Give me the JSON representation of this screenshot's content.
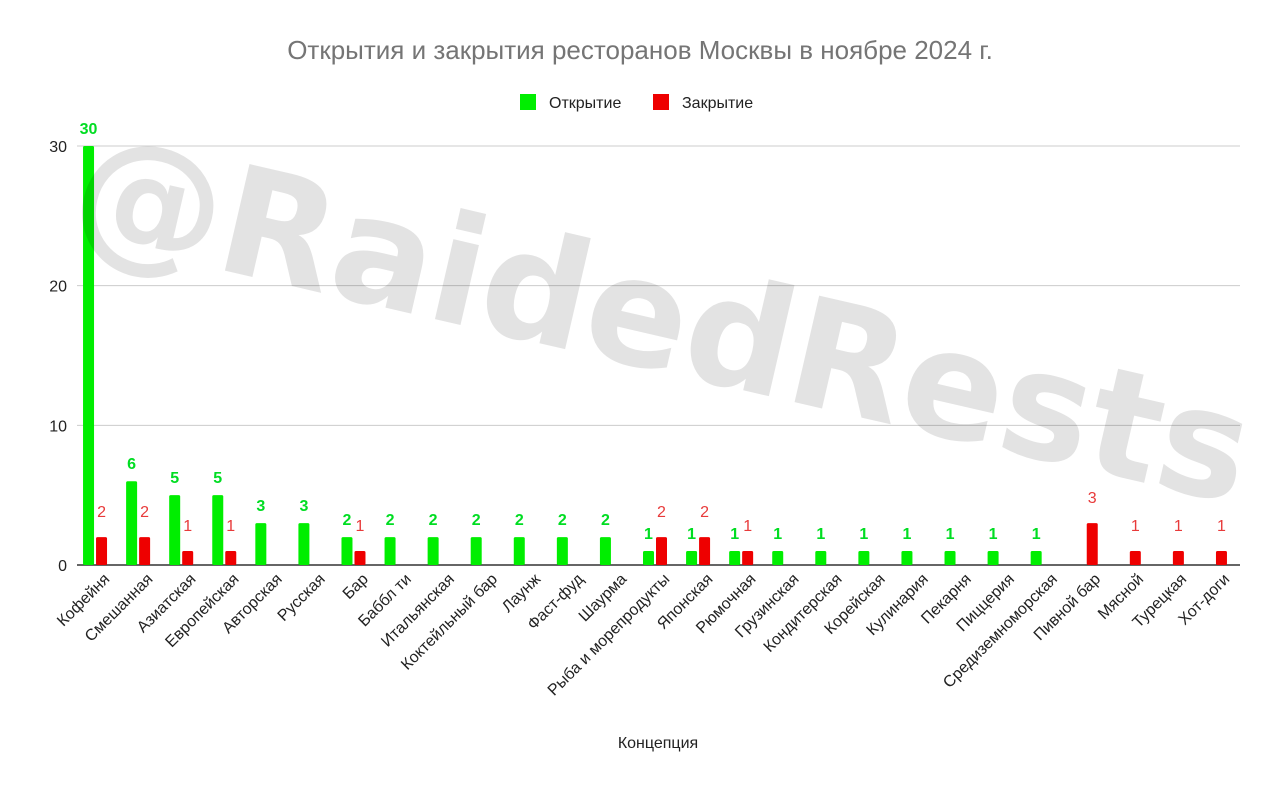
{
  "watermark": "@RaidedRests",
  "chart_data": {
    "type": "bar",
    "title": "Открытия и закрытия ресторанов Москвы в ноябре 2024 г.",
    "xlabel": "Концепция",
    "ylabel": "",
    "ylim": [
      0,
      30
    ],
    "yticks": [
      0,
      10,
      20,
      30
    ],
    "grid": true,
    "legend_position": "top",
    "categories": [
      "Кофейня",
      "Смешанная",
      "Азиатская",
      "Европейская",
      "Авторская",
      "Русская",
      "Бар",
      "Баббл ти",
      "Итальянская",
      "Коктейльный бар",
      "Лаунж",
      "Фаст-фуд",
      "Шаурма",
      "Рыба и морепродукты",
      "Японская",
      "Рюмочная",
      "Грузинская",
      "Кондитерская",
      "Корейская",
      "Кулинария",
      "Пекарня",
      "Пиццерия",
      "Средиземноморская",
      "Пивной бар",
      "Мясной",
      "Турецкая",
      "Хот-доги"
    ],
    "series": [
      {
        "name": "Открытие",
        "color": "#00ee00",
        "label_color": "#00dd22",
        "values": [
          30,
          6,
          5,
          5,
          3,
          3,
          2,
          2,
          2,
          2,
          2,
          2,
          2,
          1,
          1,
          1,
          1,
          1,
          1,
          1,
          1,
          1,
          1,
          0,
          0,
          0,
          0
        ]
      },
      {
        "name": "Закрытие",
        "color": "#ee0000",
        "label_color": "#e83a3a",
        "values": [
          2,
          2,
          1,
          1,
          0,
          0,
          1,
          0,
          0,
          0,
          0,
          0,
          0,
          2,
          2,
          1,
          0,
          0,
          0,
          0,
          0,
          0,
          0,
          3,
          1,
          1,
          1
        ]
      }
    ]
  }
}
